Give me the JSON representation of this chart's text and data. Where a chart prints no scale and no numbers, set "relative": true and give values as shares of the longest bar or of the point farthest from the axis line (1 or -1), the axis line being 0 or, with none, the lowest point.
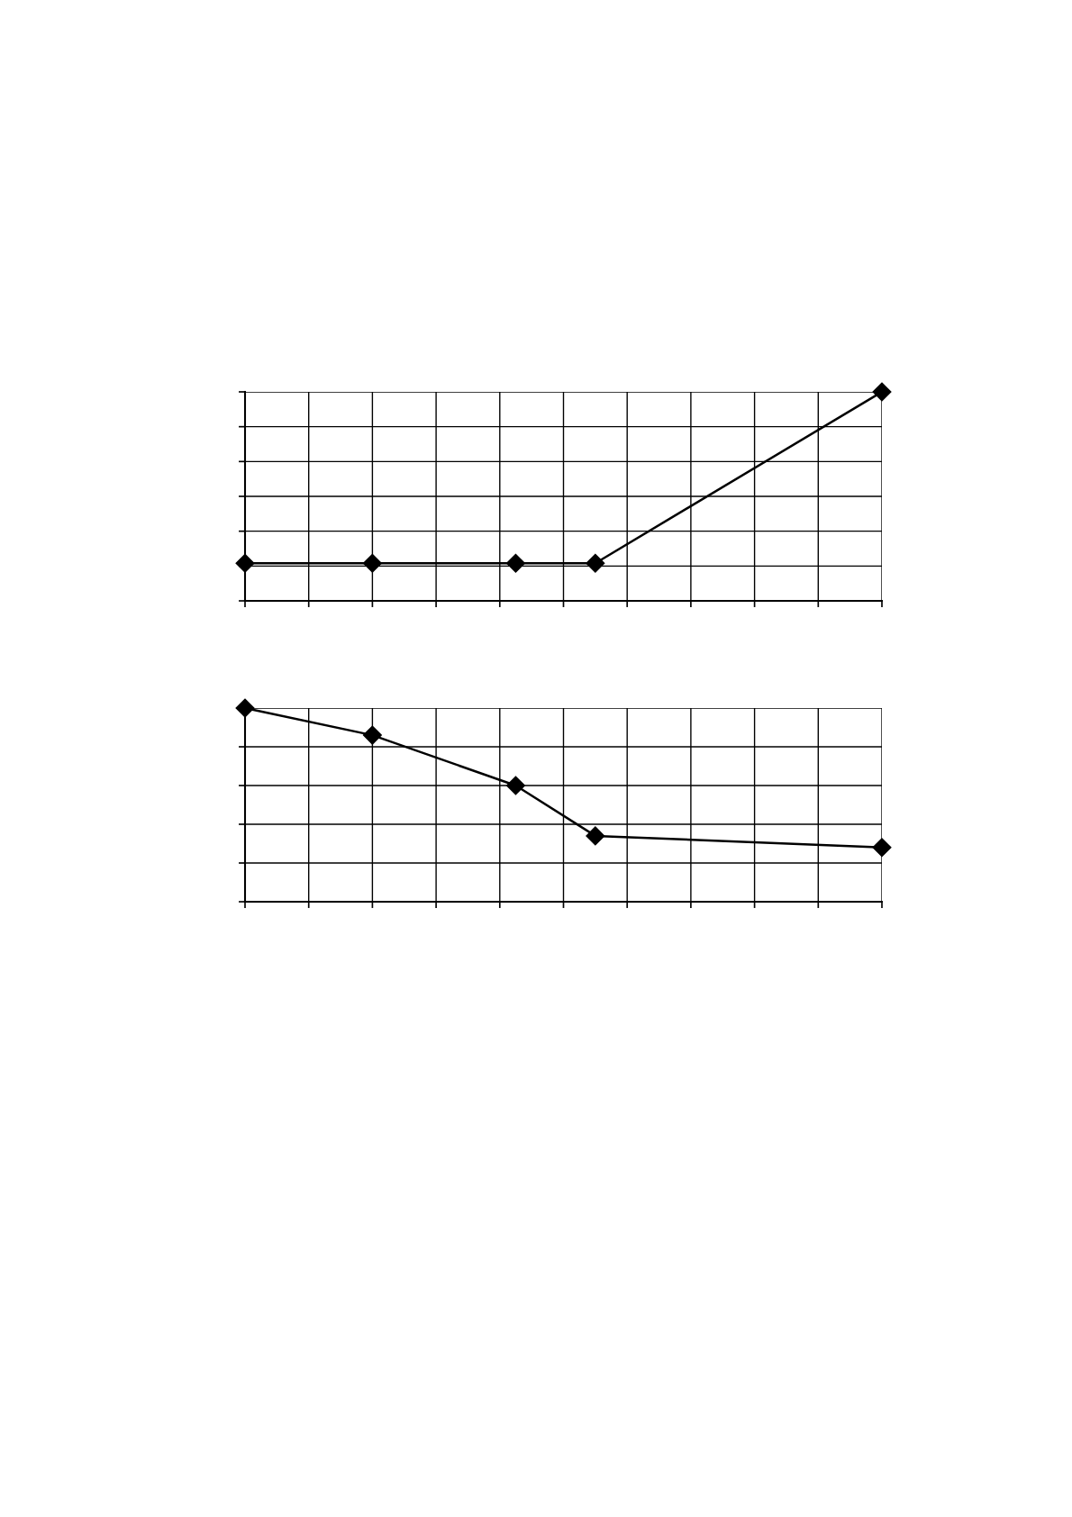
{
  "chart_data": [
    {
      "type": "line",
      "relative": true,
      "grid": true,
      "marker": "diamond",
      "line_style": "solid",
      "categories": [
        null,
        null,
        null,
        null,
        null,
        null,
        null,
        null,
        null,
        null,
        null,
        null,
        null,
        null,
        null,
        null,
        null,
        null,
        null,
        null,
        null,
        null,
        null,
        null,
        null,
        null,
        null,
        null,
        null,
        null,
        null,
        null,
        null,
        null,
        null,
        null,
        null,
        null,
        null,
        null,
        null
      ],
      "series": [
        {
          "color": "#000000",
          "values": [
            0.18,
            null,
            null,
            null,
            null,
            null,
            null,
            null,
            0.18,
            null,
            null,
            null,
            null,
            null,
            null,
            null,
            null,
            0.18,
            null,
            null,
            null,
            null,
            0.18,
            null,
            null,
            null,
            null,
            null,
            null,
            null,
            null,
            null,
            null,
            null,
            null,
            null,
            null,
            null,
            null,
            null,
            1
          ]
        }
      ]
    },
    {
      "type": "line",
      "relative": true,
      "grid": true,
      "marker": "diamond",
      "line_style": "solid",
      "categories": [
        null,
        null,
        null,
        null,
        null,
        null,
        null,
        null,
        null,
        null,
        null,
        null,
        null,
        null,
        null,
        null,
        null,
        null,
        null,
        null,
        null,
        null,
        null,
        null,
        null,
        null,
        null,
        null,
        null,
        null,
        null,
        null,
        null,
        null,
        null,
        null,
        null,
        null,
        null,
        null,
        null
      ],
      "series": [
        {
          "color": "#000000",
          "values": [
            1,
            null,
            null,
            null,
            null,
            null,
            null,
            null,
            0.86,
            null,
            null,
            null,
            null,
            null,
            null,
            null,
            null,
            0.6,
            null,
            null,
            null,
            null,
            0.34,
            null,
            null,
            null,
            null,
            null,
            null,
            null,
            null,
            null,
            null,
            null,
            null,
            null,
            null,
            null,
            null,
            null,
            0.28
          ]
        }
      ]
    }
  ]
}
